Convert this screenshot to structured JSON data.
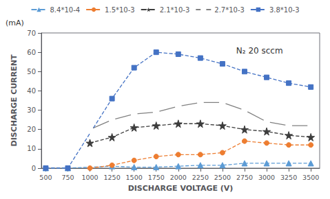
{
  "chart_data": {
    "type": "line",
    "x": [
      500,
      750,
      1000,
      1250,
      1500,
      1750,
      2000,
      2250,
      2500,
      2750,
      3000,
      3250,
      3500
    ],
    "series": [
      {
        "name": "8.4*10-4",
        "color": "#5B9BD5",
        "marker": "triangle",
        "line_style": "dashed",
        "values": [
          0,
          0,
          null,
          1,
          0.5,
          0.5,
          1,
          1.5,
          1.5,
          2.5,
          2.5,
          2.5,
          2.5
        ]
      },
      {
        "name": "1.5*10-3",
        "color": "#ED7D31",
        "marker": "circle",
        "line_style": "dashed",
        "values": [
          null,
          null,
          0,
          1.5,
          4,
          6,
          7,
          7,
          8,
          14,
          13,
          12,
          12
        ]
      },
      {
        "name": "2.1*10-3",
        "color": "#3C3C3C",
        "marker": "star",
        "line_style": "dashed",
        "values": [
          null,
          null,
          13,
          16,
          21,
          22,
          23,
          23,
          22,
          20,
          19,
          17,
          16
        ]
      },
      {
        "name": "2.7*10-3",
        "color": "#808080",
        "marker": "open circle",
        "line_style": "solid",
        "values": [
          null,
          null,
          20,
          25,
          28,
          29,
          32,
          34,
          34,
          30,
          24,
          22,
          22
        ]
      },
      {
        "name": "3.8*10-3",
        "color": "#4472C4",
        "marker": "square",
        "line_style": "dashed",
        "values": [
          0,
          0,
          null,
          36,
          52,
          60,
          59,
          57,
          54,
          50,
          47,
          44,
          42
        ]
      }
    ],
    "xlabel": "DISCHARGE VOLTAGE (V)",
    "ylabel": "DISCHARGE CURRENT",
    "yunits": "(mA)",
    "annotation": "N₂ 20 sccm",
    "xlim": [
      450,
      3600
    ],
    "xticks": [
      500,
      750,
      1000,
      1250,
      1500,
      1750,
      2000,
      2250,
      2500,
      2750,
      3000,
      3250,
      3500
    ],
    "ylim": [
      0,
      70
    ],
    "yticks": [
      0,
      10,
      20,
      30,
      40,
      50,
      60,
      70
    ],
    "grid": false,
    "legend": "top"
  }
}
